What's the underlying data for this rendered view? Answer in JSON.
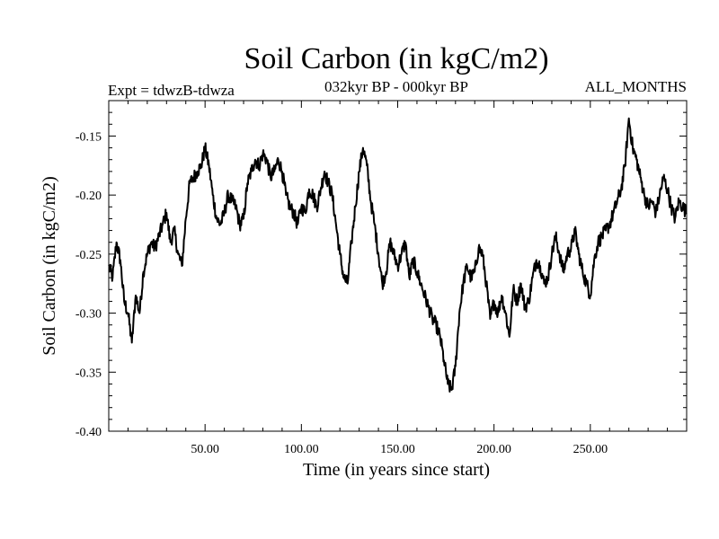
{
  "chart_data": {
    "type": "line",
    "title": "Soil Carbon (in kgC/m2)",
    "subtitle_left": "Expt = tdwzB-tdwza",
    "subtitle_center": "032kyr BP - 000kyr BP",
    "subtitle_right": "ALL_MONTHS",
    "xlabel": "Time (in years since start)",
    "ylabel": "Soil Carbon (in kgC/m2)",
    "xlim": [
      0,
      300
    ],
    "ylim": [
      -0.4,
      -0.12
    ],
    "xticks": [
      50,
      100,
      150,
      200,
      250
    ],
    "xtick_labels": [
      "50.00",
      "100.00",
      "150.00",
      "200.00",
      "250.00"
    ],
    "yticks": [
      -0.15,
      -0.2,
      -0.25,
      -0.3,
      -0.35,
      -0.4
    ],
    "ytick_labels": [
      "-0.15",
      "-0.20",
      "-0.25",
      "-0.30",
      "-0.35",
      "-0.40"
    ],
    "grid": false,
    "line_color": "#000000",
    "series": [
      {
        "x": [
          0,
          2,
          4,
          6,
          8,
          10,
          12,
          14,
          16,
          18,
          20,
          22,
          24,
          26,
          28,
          30,
          32,
          34,
          36,
          38,
          40,
          42,
          44,
          46,
          48,
          50,
          52,
          54,
          56,
          58,
          60,
          62,
          64,
          66,
          68,
          70,
          72,
          74,
          76,
          78,
          80,
          82,
          84,
          86,
          88,
          90,
          92,
          94,
          96,
          98,
          100,
          102,
          104,
          106,
          108,
          110,
          112,
          114,
          116,
          118,
          120,
          122,
          124,
          126,
          128,
          130,
          132,
          134,
          136,
          138,
          140,
          142,
          144,
          146,
          148,
          150,
          152,
          154,
          156,
          158,
          160,
          162,
          164,
          166,
          168,
          170,
          172,
          174,
          176,
          178,
          180,
          182,
          184,
          186,
          188,
          190,
          192,
          194,
          196,
          198,
          200,
          202,
          204,
          206,
          208,
          210,
          212,
          214,
          216,
          218,
          220,
          222,
          224,
          226,
          228,
          230,
          232,
          234,
          236,
          238,
          240,
          242,
          244,
          246,
          248,
          250,
          252,
          254,
          256,
          258,
          260,
          262,
          264,
          266,
          268,
          270,
          272,
          274,
          276,
          278,
          280,
          282,
          284,
          286,
          288,
          290,
          292,
          294,
          296,
          298,
          300
        ],
        "y": [
          -0.26,
          -0.27,
          -0.24,
          -0.255,
          -0.29,
          -0.3,
          -0.325,
          -0.285,
          -0.3,
          -0.265,
          -0.25,
          -0.24,
          -0.245,
          -0.235,
          -0.225,
          -0.215,
          -0.24,
          -0.23,
          -0.25,
          -0.26,
          -0.22,
          -0.19,
          -0.185,
          -0.18,
          -0.175,
          -0.16,
          -0.175,
          -0.2,
          -0.22,
          -0.225,
          -0.215,
          -0.2,
          -0.205,
          -0.21,
          -0.225,
          -0.22,
          -0.19,
          -0.18,
          -0.17,
          -0.175,
          -0.165,
          -0.17,
          -0.185,
          -0.18,
          -0.17,
          -0.18,
          -0.2,
          -0.21,
          -0.215,
          -0.225,
          -0.21,
          -0.215,
          -0.195,
          -0.2,
          -0.21,
          -0.195,
          -0.18,
          -0.19,
          -0.2,
          -0.225,
          -0.25,
          -0.27,
          -0.275,
          -0.24,
          -0.21,
          -0.18,
          -0.16,
          -0.175,
          -0.205,
          -0.225,
          -0.25,
          -0.275,
          -0.265,
          -0.24,
          -0.25,
          -0.26,
          -0.25,
          -0.24,
          -0.27,
          -0.255,
          -0.265,
          -0.275,
          -0.285,
          -0.295,
          -0.305,
          -0.31,
          -0.32,
          -0.34,
          -0.36,
          -0.365,
          -0.345,
          -0.3,
          -0.275,
          -0.26,
          -0.27,
          -0.265,
          -0.245,
          -0.25,
          -0.275,
          -0.305,
          -0.29,
          -0.3,
          -0.285,
          -0.3,
          -0.32,
          -0.28,
          -0.29,
          -0.275,
          -0.295,
          -0.29,
          -0.27,
          -0.255,
          -0.26,
          -0.275,
          -0.27,
          -0.25,
          -0.235,
          -0.25,
          -0.265,
          -0.25,
          -0.245,
          -0.23,
          -0.25,
          -0.265,
          -0.275,
          -0.285,
          -0.255,
          -0.24,
          -0.235,
          -0.23,
          -0.225,
          -0.215,
          -0.205,
          -0.195,
          -0.175,
          -0.135,
          -0.16,
          -0.17,
          -0.185,
          -0.2,
          -0.21,
          -0.205,
          -0.215,
          -0.2,
          -0.185,
          -0.195,
          -0.21,
          -0.22,
          -0.205,
          -0.21,
          -0.215
        ]
      }
    ]
  }
}
